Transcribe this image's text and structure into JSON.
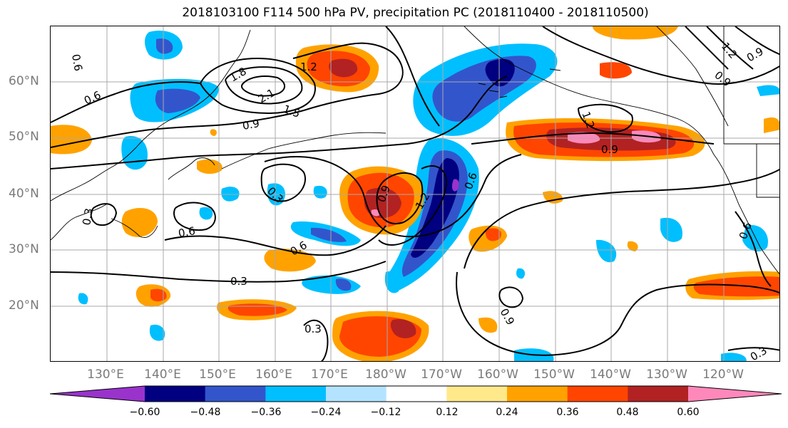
{
  "title": "2018103100 F114 500 hPa PV, precipitation PC (2018110400 - 2018110500)",
  "lat_labels": [
    "60°N",
    "50°N",
    "40°N",
    "30°N",
    "20°N"
  ],
  "lon_labels": [
    "130°E",
    "140°E",
    "150°E",
    "160°E",
    "170°E",
    "180°W",
    "170°W",
    "160°W",
    "150°W",
    "140°W",
    "130°W",
    "120°W"
  ],
  "contour_labels": [
    "0.6",
    "0.6",
    "0.9",
    "1.2",
    "1.8",
    "2.1",
    "1.5",
    "0.9",
    "1.2",
    "0.9",
    "0.3",
    "0.9",
    "1.2",
    "0.6",
    "0.6",
    "0.3",
    "0.3",
    "0.6",
    "0.3",
    "0.9",
    "0.3",
    "1.2",
    "0.9",
    "0.6"
  ],
  "colorbar": {
    "ticks": [
      "−0.60",
      "−0.48",
      "−0.36",
      "−0.24",
      "−0.12",
      "0.12",
      "0.24",
      "0.36",
      "0.48",
      "0.60"
    ],
    "colors": [
      "#9933cc",
      "#000080",
      "#3355cc",
      "#00bfff",
      "#b3e3ff",
      "#ffffff",
      "#ffe98a",
      "#ffa200",
      "#ff4500",
      "#b22222",
      "#ff88bb"
    ]
  }
}
